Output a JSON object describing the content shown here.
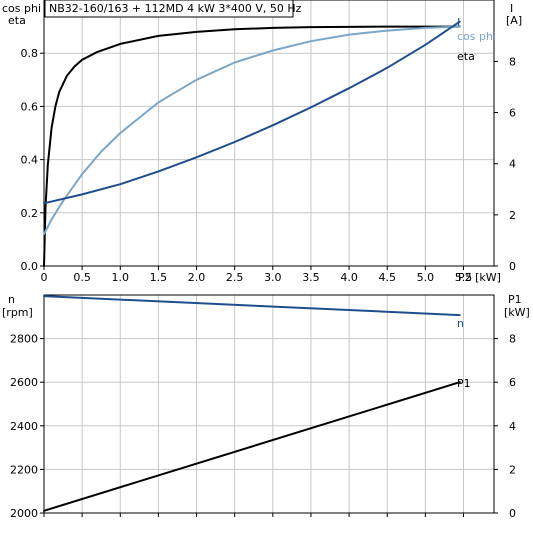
{
  "header": {
    "title": "NB32-160/163 + 112MD   4 kW   3*400 V, 50 Hz"
  },
  "colors": {
    "dark_blue": "#1f4e8c",
    "light_blue": "#7aa6c8",
    "black": "#000000",
    "grid": "#c8c8c8"
  },
  "chart_data": [
    {
      "type": "line",
      "title": "NB32-160/163 + 112MD   4 kW   3*400 V, 50 Hz",
      "xlabel": "P2 [kW]",
      "xlim": [
        0,
        5.9
      ],
      "xticks": [
        0,
        0.5,
        1.0,
        1.5,
        2.0,
        2.5,
        3.0,
        3.5,
        4.0,
        4.5,
        5.0,
        5.5
      ],
      "xtick_labels": [
        "0",
        "0.5",
        "1.0",
        "1.5",
        "2.0",
        "2.5",
        "3.0",
        "3.5",
        "4.0",
        "4.5",
        "5.0",
        "5.5"
      ],
      "y_left": {
        "label_lines": [
          "cos phi",
          "eta"
        ],
        "lim": [
          0,
          1.0
        ],
        "ticks": [
          0.0,
          0.2,
          0.4,
          0.6,
          0.8
        ],
        "tick_labels": [
          "0.0",
          "0.2",
          "0.4",
          "0.6",
          "0.8"
        ]
      },
      "y_right": {
        "label_lines": [
          "I",
          "[A]"
        ],
        "lim": [
          0,
          10.4
        ],
        "ticks": [
          0,
          2,
          4,
          6,
          8
        ],
        "tick_labels": [
          "0",
          "2",
          "4",
          "6",
          "8"
        ]
      },
      "grid": true,
      "series": [
        {
          "name": "eta",
          "axis": "left",
          "color": "black",
          "x": [
            0,
            0.02,
            0.05,
            0.1,
            0.15,
            0.2,
            0.3,
            0.4,
            0.5,
            0.7,
            1.0,
            1.5,
            2.0,
            2.5,
            3.0,
            3.5,
            4.0,
            4.5,
            5.0,
            5.45
          ],
          "y": [
            0,
            0.22,
            0.38,
            0.52,
            0.6,
            0.655,
            0.715,
            0.75,
            0.775,
            0.805,
            0.835,
            0.865,
            0.88,
            0.89,
            0.895,
            0.898,
            0.899,
            0.9,
            0.9,
            0.9
          ]
        },
        {
          "name": "cos phi",
          "axis": "left",
          "color": "light_blue",
          "x": [
            0,
            0.1,
            0.25,
            0.5,
            0.75,
            1.0,
            1.5,
            2.0,
            2.5,
            3.0,
            3.5,
            4.0,
            4.5,
            5.0,
            5.45
          ],
          "y": [
            0.12,
            0.175,
            0.245,
            0.345,
            0.43,
            0.5,
            0.615,
            0.7,
            0.765,
            0.81,
            0.845,
            0.87,
            0.885,
            0.895,
            0.9
          ]
        },
        {
          "name": "I",
          "axis": "right",
          "color": "dark_blue",
          "x": [
            0,
            0.5,
            1.0,
            1.5,
            2.0,
            2.5,
            3.0,
            3.5,
            4.0,
            4.5,
            5.0,
            5.45
          ],
          "y": [
            2.45,
            2.8,
            3.2,
            3.7,
            4.25,
            4.85,
            5.5,
            6.2,
            6.95,
            7.75,
            8.65,
            9.55
          ]
        }
      ]
    },
    {
      "type": "line",
      "xlim": [
        0,
        5.9
      ],
      "xticks": [
        0,
        0.5,
        1.0,
        1.5,
        2.0,
        2.5,
        3.0,
        3.5,
        4.0,
        4.5,
        5.0,
        5.5
      ],
      "y_left": {
        "label_lines": [
          "n",
          "[rpm]"
        ],
        "lim": [
          2000,
          3000
        ],
        "ticks": [
          2000,
          2200,
          2400,
          2600,
          2800
        ],
        "tick_labels": [
          "2000",
          "2200",
          "2400",
          "2600",
          "2800"
        ]
      },
      "y_right": {
        "label_lines": [
          "P1",
          "[kW]"
        ],
        "lim": [
          0,
          10
        ],
        "ticks": [
          0,
          2,
          4,
          6,
          8
        ],
        "tick_labels": [
          "0",
          "2",
          "4",
          "6",
          "8"
        ]
      },
      "grid": true,
      "series": [
        {
          "name": "n",
          "axis": "left",
          "color": "dark_blue",
          "x": [
            0,
            5.45
          ],
          "y": [
            2995,
            2908
          ]
        },
        {
          "name": "P1",
          "axis": "right",
          "color": "black",
          "x": [
            0,
            5.45
          ],
          "y": [
            0.1,
            6.0
          ]
        }
      ]
    }
  ]
}
